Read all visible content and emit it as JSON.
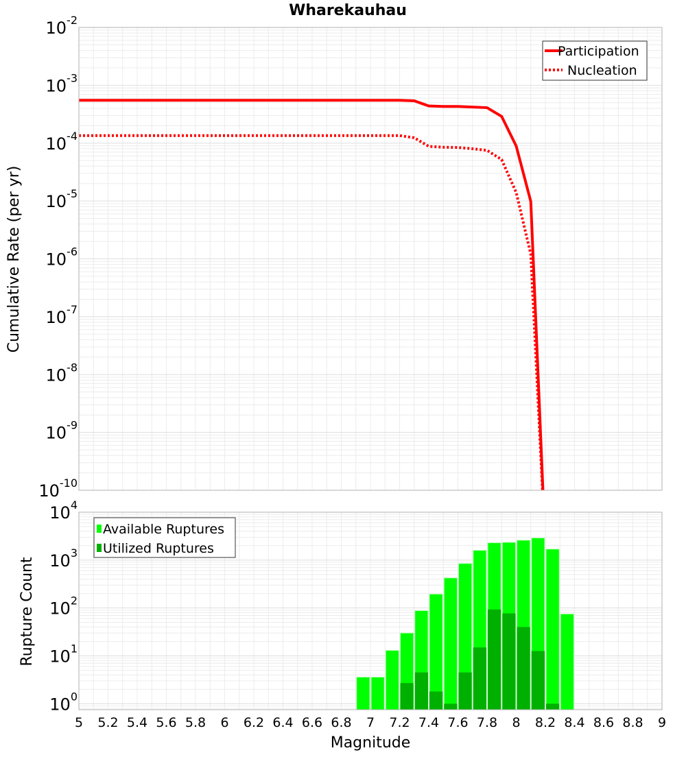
{
  "chart_data": [
    {
      "type": "line",
      "title": "Wharekauhau",
      "xlabel": "",
      "ylabel": "Cumulative Rate (per yr)",
      "yscale": "log",
      "xlim": [
        5,
        9
      ],
      "ylim": [
        1e-10,
        0.01
      ],
      "ytick_exponents": [
        -2,
        -3,
        -4,
        -5,
        -6,
        -7,
        -8,
        -9,
        -10
      ],
      "ytick_base": "10",
      "grid": true,
      "legend_placement": "top-right",
      "series": [
        {
          "name": "Participation",
          "style": "solid",
          "color": "#ff0000",
          "x": [
            5.0,
            7.2,
            7.3,
            7.4,
            7.5,
            7.6,
            7.7,
            7.8,
            7.9,
            8.0,
            8.1,
            8.2
          ],
          "y": [
            0.00055,
            0.00055,
            0.00054,
            0.00044,
            0.00043,
            0.00043,
            0.00042,
            0.00041,
            0.00029,
            8.9e-05,
            9.8e-06,
            1e-11
          ]
        },
        {
          "name": "Nucleation",
          "style": "dotted",
          "color": "#ff0000",
          "x": [
            5.0,
            7.2,
            7.3,
            7.4,
            7.5,
            7.6,
            7.7,
            7.8,
            7.9,
            8.0,
            8.1,
            8.2
          ],
          "y": [
            0.000135,
            0.000135,
            0.000124,
            8.8e-05,
            8.5e-05,
            8.4e-05,
            8e-05,
            7.5e-05,
            5.2e-05,
            1.4e-05,
            1.2e-06,
            1e-11
          ]
        }
      ]
    },
    {
      "type": "bar",
      "xlabel": "Magnitude",
      "ylabel": "Rupture Count",
      "yscale": "log",
      "xlim": [
        5,
        9
      ],
      "ylim": [
        0.75,
        10000
      ],
      "xticks": [
        "5",
        "5.2",
        "5.4",
        "5.6",
        "5.8",
        "6",
        "6.2",
        "6.4",
        "6.6",
        "6.8",
        "7",
        "7.2",
        "7.4",
        "7.6",
        "7.8",
        "8",
        "8.2",
        "8.4",
        "8.6",
        "8.8",
        "9"
      ],
      "ytick_exponents": [
        4,
        3,
        2,
        1,
        0
      ],
      "ytick_base": "10",
      "bin_width": 0.1,
      "legend_placement": "top-left",
      "x": [
        6.95,
        7.05,
        7.15,
        7.25,
        7.35,
        7.45,
        7.55,
        7.65,
        7.75,
        7.85,
        7.95,
        8.05,
        8.15,
        8.25,
        8.35
      ],
      "series": [
        {
          "name": "Available Ruptures",
          "color": "#00ff00",
          "values": [
            3.6,
            3.6,
            13,
            30,
            88,
            195,
            425,
            850,
            1600,
            2300,
            2350,
            2600,
            2900,
            1700,
            75
          ]
        },
        {
          "name": "Utilized Ruptures",
          "color": "#00b000",
          "values": [
            0,
            0,
            0,
            2.7,
            4.5,
            1.8,
            1,
            4.5,
            15,
            93,
            77,
            40,
            12.6,
            1,
            0
          ]
        }
      ]
    }
  ]
}
